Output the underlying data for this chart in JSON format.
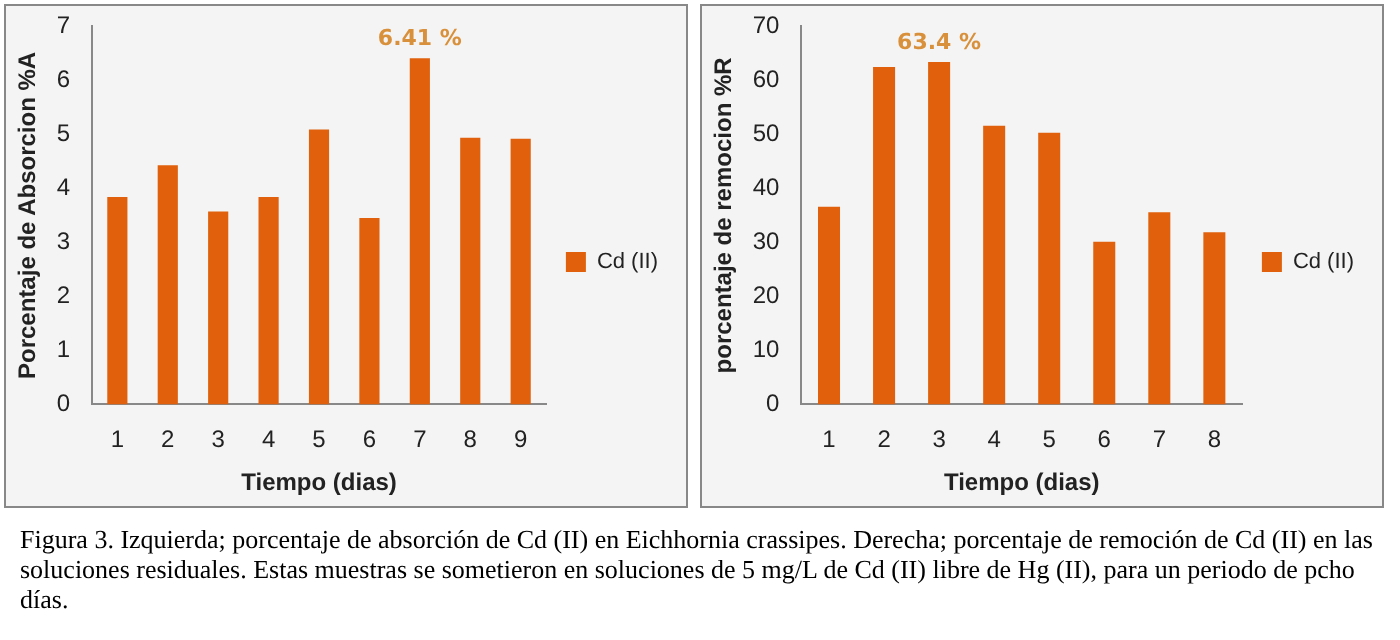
{
  "chart_data": [
    {
      "type": "bar",
      "xlabel": "Tiempo (dias)",
      "ylabel": "Porcentaje de Absorcion %A",
      "categories": [
        "1",
        "2",
        "3",
        "4",
        "5",
        "6",
        "7",
        "8",
        "9"
      ],
      "series": [
        {
          "name": "Cd (II)",
          "color": "#e0600c",
          "values": [
            3.84,
            4.43,
            3.57,
            3.84,
            5.09,
            3.45,
            6.41,
            4.94,
            4.92
          ],
          "value_labels": [
            null,
            null,
            null,
            null,
            null,
            null,
            "6.41 %",
            null,
            null
          ]
        }
      ],
      "ylim": [
        0,
        7
      ],
      "yticks": [
        0,
        1,
        2,
        3,
        4,
        5,
        6,
        7
      ],
      "legend": "right"
    },
    {
      "type": "bar",
      "xlabel": "Tiempo (dias)",
      "ylabel": "porcentaje de remocion %R",
      "categories": [
        "1",
        "2",
        "3",
        "4",
        "5",
        "6",
        "7",
        "8"
      ],
      "series": [
        {
          "name": "Cd (II)",
          "color": "#e0600c",
          "values": [
            36.6,
            62.5,
            63.4,
            51.6,
            50.3,
            30.1,
            35.6,
            31.9
          ],
          "value_labels": [
            null,
            null,
            "63.4 %",
            null,
            null,
            null,
            null,
            null
          ]
        }
      ],
      "ylim": [
        0,
        70
      ],
      "yticks": [
        0,
        10,
        20,
        30,
        40,
        50,
        60,
        70
      ],
      "legend": "right"
    },
    {
      "type": "other",
      "annotations": [
        "Figura 3. Izquierda; porcentaje de absorción de Cd (II) en Eichhornia crassipes. Derecha; porcentaje de remoción de Cd (II) en las soluciones residuales. Estas muestras se sometieron en soluciones de 5 mg/L de Cd (II) libre de Hg (II), para un periodo de pcho días."
      ]
    }
  ]
}
